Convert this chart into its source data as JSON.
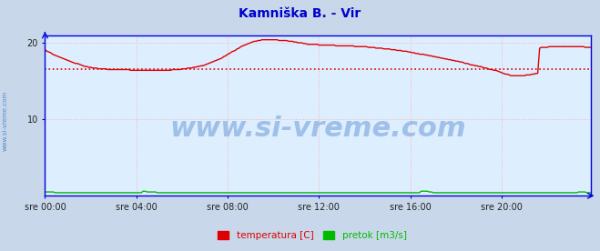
{
  "title": "Kamniška B. - Vir",
  "title_color": "#0000cc",
  "title_fontsize": 10,
  "plot_bg_color": "#ddeeff",
  "outer_bg_color": "#c8d8ea",
  "grid_color": "#ffb0b0",
  "grid_linestyle": ":",
  "axis_color": "#0000dd",
  "ylim": [
    0,
    21
  ],
  "yticks": [
    10,
    20
  ],
  "ytick_labels": [
    "10",
    "20"
  ],
  "xlim": [
    0,
    287
  ],
  "xtick_positions": [
    0,
    48,
    96,
    144,
    192,
    240
  ],
  "xtick_labels": [
    "sre 00:00",
    "sre 04:00",
    "sre 08:00",
    "sre 12:00",
    "sre 16:00",
    "sre 20:00"
  ],
  "legend_labels": [
    "temperatura [C]",
    "pretok [m3/s]"
  ],
  "legend_colors": [
    "#dd0000",
    "#00bb00"
  ],
  "watermark": "www.si-vreme.com",
  "watermark_color": "#5588cc",
  "watermark_fontsize": 22,
  "ylabel_text": "www.si-vreme.com",
  "ylabel_color": "#5588cc",
  "avg_line_y": 16.5,
  "avg_line_color": "#dd0000",
  "temp_color": "#dd0000",
  "flow_color": "#00bb00",
  "temp_data": [
    19.1,
    18.9,
    18.8,
    18.7,
    18.5,
    18.4,
    18.3,
    18.2,
    18.1,
    18.0,
    17.9,
    17.8,
    17.7,
    17.6,
    17.5,
    17.4,
    17.3,
    17.3,
    17.2,
    17.1,
    17.0,
    16.9,
    16.9,
    16.8,
    16.8,
    16.7,
    16.7,
    16.7,
    16.6,
    16.6,
    16.6,
    16.6,
    16.6,
    16.5,
    16.5,
    16.5,
    16.5,
    16.5,
    16.5,
    16.5,
    16.5,
    16.5,
    16.5,
    16.5,
    16.5,
    16.4,
    16.4,
    16.4,
    16.4,
    16.4,
    16.4,
    16.4,
    16.4,
    16.4,
    16.4,
    16.4,
    16.4,
    16.4,
    16.4,
    16.4,
    16.4,
    16.4,
    16.4,
    16.4,
    16.4,
    16.4,
    16.4,
    16.5,
    16.5,
    16.5,
    16.5,
    16.5,
    16.6,
    16.6,
    16.6,
    16.7,
    16.7,
    16.7,
    16.8,
    16.8,
    16.9,
    16.9,
    17.0,
    17.0,
    17.1,
    17.2,
    17.3,
    17.4,
    17.5,
    17.6,
    17.7,
    17.8,
    17.9,
    18.0,
    18.2,
    18.3,
    18.5,
    18.6,
    18.8,
    18.9,
    19.0,
    19.2,
    19.3,
    19.5,
    19.6,
    19.7,
    19.8,
    19.9,
    20.0,
    20.1,
    20.2,
    20.2,
    20.3,
    20.3,
    20.4,
    20.4,
    20.4,
    20.4,
    20.4,
    20.4,
    20.4,
    20.4,
    20.4,
    20.3,
    20.3,
    20.3,
    20.3,
    20.3,
    20.2,
    20.2,
    20.2,
    20.1,
    20.1,
    20.0,
    20.0,
    20.0,
    19.9,
    19.9,
    19.8,
    19.8,
    19.8,
    19.8,
    19.8,
    19.8,
    19.7,
    19.7,
    19.7,
    19.7,
    19.7,
    19.7,
    19.7,
    19.7,
    19.7,
    19.6,
    19.6,
    19.6,
    19.6,
    19.6,
    19.6,
    19.6,
    19.6,
    19.6,
    19.6,
    19.5,
    19.5,
    19.5,
    19.5,
    19.5,
    19.5,
    19.5,
    19.4,
    19.4,
    19.4,
    19.4,
    19.3,
    19.3,
    19.3,
    19.3,
    19.2,
    19.2,
    19.2,
    19.2,
    19.1,
    19.1,
    19.1,
    19.0,
    19.0,
    19.0,
    18.9,
    18.9,
    18.9,
    18.8,
    18.8,
    18.7,
    18.7,
    18.6,
    18.6,
    18.5,
    18.5,
    18.5,
    18.4,
    18.4,
    18.3,
    18.3,
    18.2,
    18.2,
    18.1,
    18.1,
    18.0,
    18.0,
    17.9,
    17.9,
    17.8,
    17.8,
    17.7,
    17.7,
    17.6,
    17.6,
    17.5,
    17.5,
    17.4,
    17.3,
    17.3,
    17.2,
    17.1,
    17.1,
    17.0,
    17.0,
    16.9,
    16.9,
    16.8,
    16.7,
    16.7,
    16.6,
    16.5,
    16.5,
    16.4,
    16.4,
    16.3,
    16.2,
    16.1,
    16.0,
    15.9,
    15.9,
    15.8,
    15.7,
    15.7,
    15.7,
    15.7,
    15.7,
    15.7,
    15.7,
    15.7,
    15.8,
    15.8,
    15.8,
    15.9,
    15.9,
    16.0,
    16.0,
    19.3,
    19.4,
    19.4,
    19.4,
    19.4,
    19.5,
    19.5,
    19.5,
    19.5,
    19.5,
    19.5,
    19.5,
    19.5,
    19.5,
    19.5,
    19.5,
    19.5,
    19.5,
    19.5,
    19.5,
    19.5,
    19.5,
    19.5,
    19.5,
    19.4,
    19.4,
    19.4,
    19.4
  ],
  "flow_data": [
    0.5,
    0.5,
    0.5,
    0.5,
    0.5,
    0.4,
    0.4,
    0.4,
    0.4,
    0.4,
    0.4,
    0.4,
    0.4,
    0.4,
    0.4,
    0.4,
    0.4,
    0.4,
    0.4,
    0.4,
    0.4,
    0.4,
    0.4,
    0.4,
    0.4,
    0.4,
    0.4,
    0.4,
    0.4,
    0.4,
    0.4,
    0.4,
    0.4,
    0.4,
    0.4,
    0.4,
    0.4,
    0.4,
    0.4,
    0.4,
    0.4,
    0.4,
    0.4,
    0.4,
    0.4,
    0.4,
    0.4,
    0.4,
    0.6,
    0.6,
    0.5,
    0.5,
    0.5,
    0.5,
    0.5,
    0.4,
    0.4,
    0.4,
    0.4,
    0.4,
    0.4,
    0.4,
    0.4,
    0.4,
    0.4,
    0.4,
    0.4,
    0.4,
    0.4,
    0.4,
    0.4,
    0.4,
    0.4,
    0.4,
    0.4,
    0.4,
    0.4,
    0.4,
    0.4,
    0.4,
    0.4,
    0.4,
    0.4,
    0.4,
    0.4,
    0.4,
    0.4,
    0.4,
    0.4,
    0.4,
    0.4,
    0.4,
    0.4,
    0.4,
    0.4,
    0.4,
    0.4,
    0.4,
    0.4,
    0.4,
    0.4,
    0.4,
    0.4,
    0.4,
    0.4,
    0.4,
    0.4,
    0.4,
    0.4,
    0.4,
    0.4,
    0.4,
    0.4,
    0.4,
    0.4,
    0.4,
    0.4,
    0.4,
    0.4,
    0.4,
    0.4,
    0.4,
    0.4,
    0.4,
    0.4,
    0.4,
    0.4,
    0.4,
    0.4,
    0.4,
    0.4,
    0.4,
    0.4,
    0.4,
    0.4,
    0.4,
    0.4,
    0.4,
    0.4,
    0.4,
    0.4,
    0.4,
    0.4,
    0.4,
    0.4,
    0.4,
    0.4,
    0.4,
    0.4,
    0.4,
    0.4,
    0.4,
    0.4,
    0.4,
    0.4,
    0.4,
    0.4,
    0.4,
    0.4,
    0.4,
    0.4,
    0.4,
    0.4,
    0.4,
    0.4,
    0.4,
    0.4,
    0.4,
    0.4,
    0.4,
    0.4,
    0.4,
    0.4,
    0.4,
    0.4,
    0.4,
    0.4,
    0.4,
    0.4,
    0.4,
    0.4,
    0.4,
    0.4,
    0.4,
    0.6,
    0.6,
    0.6,
    0.6,
    0.5,
    0.5,
    0.4,
    0.4,
    0.4,
    0.4,
    0.4,
    0.4,
    0.4,
    0.4,
    0.4,
    0.4,
    0.4,
    0.4,
    0.4,
    0.4,
    0.4,
    0.4,
    0.4,
    0.4,
    0.4,
    0.4,
    0.4,
    0.4,
    0.4,
    0.4,
    0.4,
    0.4,
    0.4,
    0.4,
    0.4,
    0.4,
    0.4,
    0.4,
    0.4,
    0.4,
    0.4,
    0.4,
    0.4,
    0.4,
    0.4,
    0.4,
    0.4,
    0.4,
    0.4,
    0.4,
    0.4,
    0.4,
    0.4,
    0.4,
    0.4,
    0.4,
    0.4,
    0.4,
    0.4,
    0.4,
    0.4,
    0.4,
    0.4,
    0.4,
    0.4,
    0.4,
    0.4,
    0.4,
    0.4,
    0.4,
    0.4,
    0.4,
    0.4,
    0.4,
    0.4,
    0.4,
    0.4,
    0.5,
    0.5,
    0.5,
    0.5,
    0.4,
    0.4,
    0.4
  ]
}
